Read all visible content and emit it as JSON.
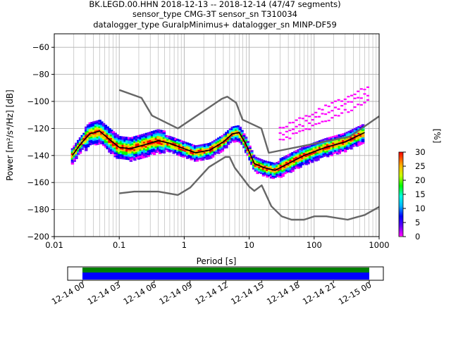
{
  "title_lines": [
    "BK.LEGD.00.HHN   2018-12-13 -- 2018-12-14  (47/47 segments)",
    "sensor_type CMG-3T sensor_sn T310034",
    "datalogger_type GuralpMinimus+ datalogger_sn MINP-DF59"
  ],
  "chart_data": {
    "type": "heatmap",
    "title": "BK.LEGD.00.HHN   2018-12-13 -- 2018-12-14  (47/47 segments)",
    "xlabel": "Period [s]",
    "ylabel": "Power [m²/s⁴/Hz] [dB]",
    "xscale": "log",
    "xlim": [
      0.01,
      1000
    ],
    "ylim": [
      -200,
      -50
    ],
    "x_ticks": [
      0.01,
      0.1,
      1,
      10,
      100,
      1000
    ],
    "x_tick_labels": [
      "0.01",
      "0.1",
      "1",
      "10",
      "100",
      "1000"
    ],
    "y_ticks": [
      -200,
      -180,
      -160,
      -140,
      -120,
      -100,
      -80,
      -60
    ],
    "y_tick_labels": [
      "−200",
      "−180",
      "−160",
      "−140",
      "−120",
      "−100",
      "−80",
      "−60"
    ],
    "grid": true,
    "colorbar": {
      "label": "[%]",
      "range": [
        0,
        30
      ],
      "ticks": [
        0,
        5,
        10,
        15,
        20,
        25,
        30
      ],
      "colormap": "pqlx"
    },
    "series": [
      {
        "name": "mode",
        "color": "#000000",
        "points": [
          [
            0.019,
            -140
          ],
          [
            0.025,
            -132
          ],
          [
            0.035,
            -124
          ],
          [
            0.05,
            -122
          ],
          [
            0.07,
            -128
          ],
          [
            0.1,
            -134
          ],
          [
            0.15,
            -135
          ],
          [
            0.25,
            -132
          ],
          [
            0.4,
            -129
          ],
          [
            0.6,
            -131
          ],
          [
            1,
            -135
          ],
          [
            1.5,
            -138
          ],
          [
            2.5,
            -136
          ],
          [
            4,
            -130
          ],
          [
            5.5,
            -124
          ],
          [
            7,
            -123
          ],
          [
            9,
            -132
          ],
          [
            12,
            -146
          ],
          [
            17,
            -149
          ],
          [
            25,
            -151
          ],
          [
            40,
            -146
          ],
          [
            70,
            -140
          ],
          [
            150,
            -134
          ],
          [
            300,
            -130
          ],
          [
            600,
            -123
          ]
        ]
      },
      {
        "name": "NHNM",
        "color": "#666666",
        "points": [
          [
            0.1,
            -91.5
          ],
          [
            0.22,
            -97.4
          ],
          [
            0.32,
            -110.5
          ],
          [
            0.8,
            -120
          ],
          [
            3.8,
            -98
          ],
          [
            4.6,
            -96.5
          ],
          [
            6.3,
            -101
          ],
          [
            7.9,
            -113.5
          ],
          [
            15.4,
            -120
          ],
          [
            20,
            -138
          ],
          [
            354.8,
            -126
          ],
          [
            1000,
            -111
          ]
        ]
      },
      {
        "name": "NLNM",
        "color": "#666666",
        "points": [
          [
            0.1,
            -168
          ],
          [
            0.17,
            -166.7
          ],
          [
            0.4,
            -166.7
          ],
          [
            0.8,
            -169.2
          ],
          [
            1.24,
            -163.7
          ],
          [
            2.4,
            -148.6
          ],
          [
            4.3,
            -141.1
          ],
          [
            5,
            -141.1
          ],
          [
            6,
            -149
          ],
          [
            10,
            -163
          ],
          [
            12,
            -166.2
          ],
          [
            15.6,
            -162.1
          ],
          [
            21.9,
            -177.5
          ],
          [
            31.6,
            -185
          ],
          [
            45,
            -187.5
          ],
          [
            70,
            -187.5
          ],
          [
            101,
            -185
          ],
          [
            154,
            -185
          ],
          [
            328,
            -187.5
          ],
          [
            600,
            -184
          ],
          [
            1000,
            -178
          ]
        ]
      }
    ],
    "coverage": {
      "x_tick_labels": [
        "12-14 00",
        "12-14 03",
        "12-14 06",
        "12-14 09",
        "12-14 12",
        "12-14 15",
        "12-14 18",
        "12-14 21",
        "12-15 00"
      ],
      "colors": {
        "data": "#0000ff",
        "gaps": "#008000"
      }
    }
  }
}
